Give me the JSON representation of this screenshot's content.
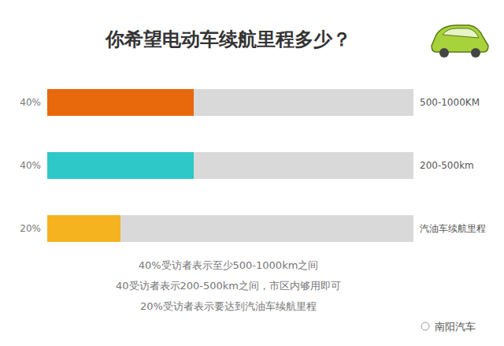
{
  "chart_data": {
    "type": "bar",
    "orientation": "horizontal",
    "title": "你希望电动车续航里程多少？",
    "categories": [
      "500-1000KM",
      "200-500km",
      "汽油车续航里程"
    ],
    "values": [
      40,
      40,
      20
    ],
    "value_labels": [
      "40%",
      "40%",
      "20%"
    ],
    "colors": [
      "#e8690c",
      "#2ec8c8",
      "#f5b320"
    ],
    "xlim": [
      0,
      100
    ],
    "data_labels": true,
    "tick_labels": "y",
    "annotations": [
      "40%受访者表示至少500-1000km之间",
      "40受访者表示200-500km之间，市区内够用即可",
      "20%受访者表示要达到汽油车续航里程",
      "南阳汽车"
    ]
  }
}
